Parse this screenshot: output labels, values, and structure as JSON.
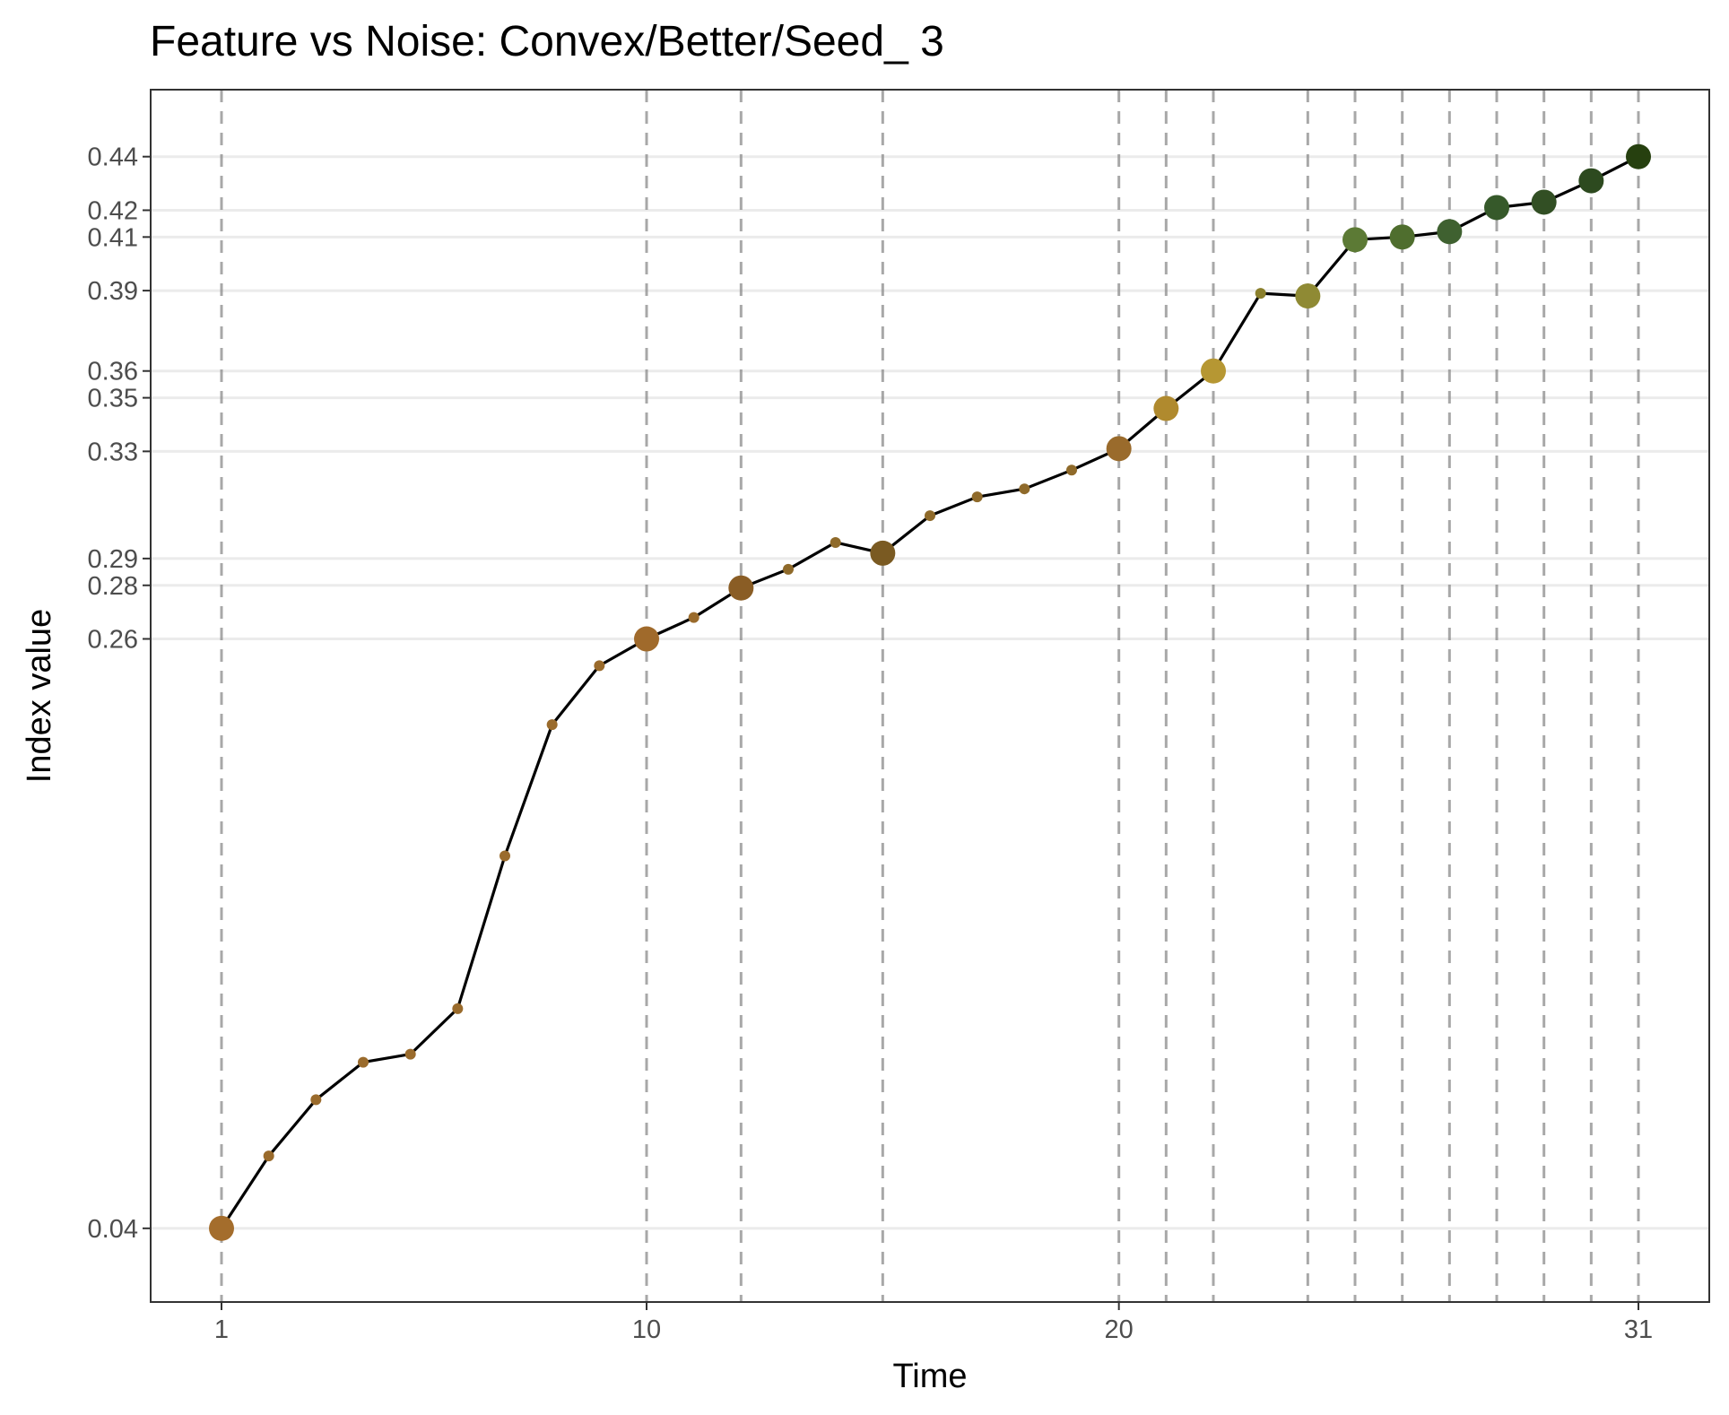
{
  "chart_data": {
    "type": "line",
    "title": "Feature vs Noise: Convex/Better/Seed_ 3",
    "xlabel": "Time",
    "ylabel": "Index value",
    "xlim": [
      -0.5,
      32.5
    ],
    "ylim": [
      0.0125,
      0.465
    ],
    "x_ticks": [
      1,
      10,
      20,
      31
    ],
    "x_tick_labels": [
      "1",
      "10",
      "20",
      "31"
    ],
    "y_ticks": [
      0.04,
      0.26,
      0.28,
      0.29,
      0.33,
      0.35,
      0.36,
      0.39,
      0.41,
      0.42,
      0.44
    ],
    "y_tick_labels": [
      "0.04",
      "0.26",
      "0.28",
      "0.29",
      "0.33",
      "0.35",
      "0.36",
      "0.39",
      "0.41",
      "0.42",
      "0.44"
    ],
    "grid": "horizontal",
    "vlines": [
      1,
      10,
      12,
      15,
      20,
      21,
      22,
      24,
      25,
      26,
      27,
      28,
      29,
      30,
      31
    ],
    "line_color": "#000000",
    "series": [
      {
        "points": [
          {
            "x": 1,
            "y": 0.04,
            "color": "#a46d2c",
            "highlight": true
          },
          {
            "x": 2,
            "y": 0.067,
            "color": "#9a6b2c",
            "highlight": false
          },
          {
            "x": 3,
            "y": 0.088,
            "color": "#9a6b2c",
            "highlight": false
          },
          {
            "x": 4,
            "y": 0.102,
            "color": "#9a6b2c",
            "highlight": false
          },
          {
            "x": 5,
            "y": 0.105,
            "color": "#9a6b2c",
            "highlight": false
          },
          {
            "x": 6,
            "y": 0.122,
            "color": "#9a6b2c",
            "highlight": false
          },
          {
            "x": 7,
            "y": 0.179,
            "color": "#9a6b2c",
            "highlight": false
          },
          {
            "x": 8,
            "y": 0.228,
            "color": "#9a6b2c",
            "highlight": false
          },
          {
            "x": 9,
            "y": 0.25,
            "color": "#9a6b2c",
            "highlight": false
          },
          {
            "x": 10,
            "y": 0.26,
            "color": "#a06a2b",
            "highlight": true
          },
          {
            "x": 11,
            "y": 0.268,
            "color": "#9a6b2c",
            "highlight": false
          },
          {
            "x": 12,
            "y": 0.279,
            "color": "#8a5d25",
            "highlight": true
          },
          {
            "x": 13,
            "y": 0.286,
            "color": "#8f6a2a",
            "highlight": false
          },
          {
            "x": 14,
            "y": 0.296,
            "color": "#8f6a2a",
            "highlight": false
          },
          {
            "x": 15,
            "y": 0.292,
            "color": "#7a5a22",
            "highlight": true
          },
          {
            "x": 16,
            "y": 0.306,
            "color": "#8f6a2a",
            "highlight": false
          },
          {
            "x": 17,
            "y": 0.313,
            "color": "#8f6a2a",
            "highlight": false
          },
          {
            "x": 18,
            "y": 0.316,
            "color": "#8f6a2a",
            "highlight": false
          },
          {
            "x": 19,
            "y": 0.323,
            "color": "#8f6a2a",
            "highlight": false
          },
          {
            "x": 20,
            "y": 0.331,
            "color": "#9a6b2c",
            "highlight": true
          },
          {
            "x": 21,
            "y": 0.346,
            "color": "#b08a2e",
            "highlight": true
          },
          {
            "x": 22,
            "y": 0.36,
            "color": "#b69733",
            "highlight": true
          },
          {
            "x": 23,
            "y": 0.389,
            "color": "#8a7f2c",
            "highlight": false
          },
          {
            "x": 24,
            "y": 0.388,
            "color": "#8f8a34",
            "highlight": true
          },
          {
            "x": 25,
            "y": 0.409,
            "color": "#5c7a35",
            "highlight": true
          },
          {
            "x": 26,
            "y": 0.41,
            "color": "#4f6e2e",
            "highlight": true
          },
          {
            "x": 27,
            "y": 0.412,
            "color": "#3f6130",
            "highlight": true
          },
          {
            "x": 28,
            "y": 0.421,
            "color": "#36592a",
            "highlight": true
          },
          {
            "x": 29,
            "y": 0.423,
            "color": "#324f24",
            "highlight": true
          },
          {
            "x": 30,
            "y": 0.431,
            "color": "#2d4a1f",
            "highlight": true
          },
          {
            "x": 31,
            "y": 0.44,
            "color": "#26400f",
            "highlight": true
          }
        ]
      }
    ]
  }
}
